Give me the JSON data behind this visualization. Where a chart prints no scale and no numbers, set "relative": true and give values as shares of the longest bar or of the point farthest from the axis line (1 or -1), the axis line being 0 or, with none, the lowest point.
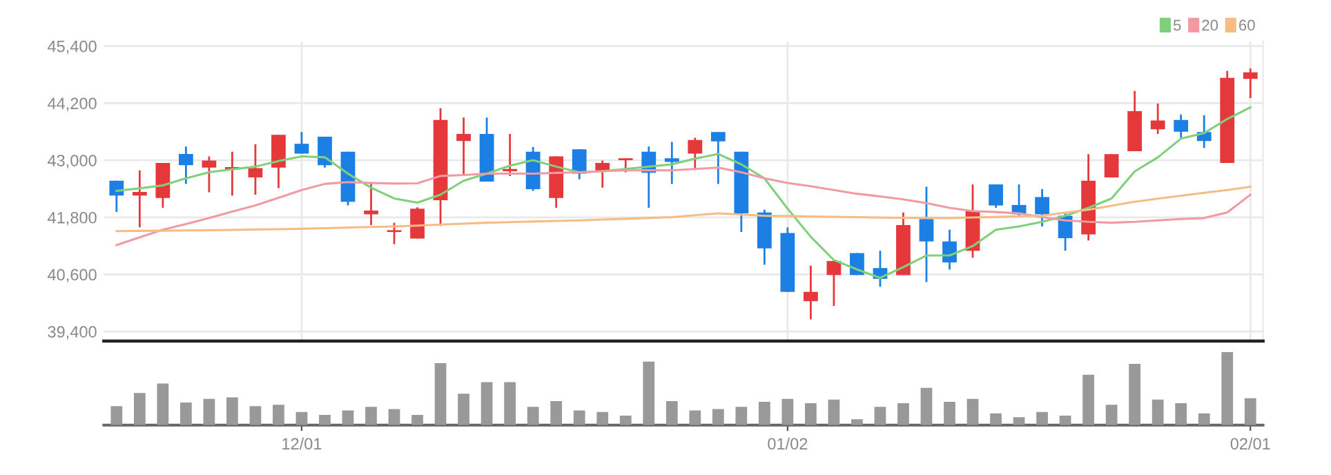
{
  "chart_data": [
    {
      "type": "candlestick",
      "categories": [
        null,
        null,
        null,
        null,
        null,
        null,
        null,
        null,
        null,
        null,
        null,
        null,
        null,
        null,
        null,
        null,
        null,
        null,
        null,
        null,
        null,
        null,
        null,
        null,
        null,
        null,
        null,
        null,
        null,
        null,
        null,
        null,
        null,
        null,
        null,
        null,
        null,
        null,
        null,
        null,
        null,
        null,
        null,
        null,
        null,
        null,
        null,
        null,
        null,
        null
      ],
      "ohlc": [
        [
          42571,
          42571,
          41913,
          42257
        ],
        [
          42257,
          42787,
          41589,
          42336
        ],
        [
          42208,
          42944,
          42002,
          42944
        ],
        [
          43131,
          43288,
          42503,
          42895
        ],
        [
          42846,
          43082,
          42326,
          42993
        ],
        [
          42807,
          43180,
          42257,
          42856
        ],
        [
          42640,
          43337,
          42277,
          42836
        ],
        [
          42846,
          43534,
          42414,
          43534
        ],
        [
          43347,
          43593,
          43141,
          43141
        ],
        [
          43494,
          43494,
          42846,
          42895
        ],
        [
          43180,
          43180,
          42051,
          42129
        ],
        [
          41864,
          42522,
          41638,
          41943
        ],
        [
          41491,
          41687,
          41236,
          41530
        ],
        [
          41354,
          42012,
          41354,
          41982
        ],
        [
          42159,
          44093,
          41619,
          43848
        ],
        [
          43406,
          43897,
          42699,
          43553
        ],
        [
          43553,
          43897,
          42552,
          42552
        ],
        [
          42768,
          43553,
          42669,
          42817
        ],
        [
          43180,
          43278,
          42355,
          42394
        ],
        [
          42208,
          43082,
          42002,
          43082
        ],
        [
          43229,
          43229,
          42601,
          42719
        ],
        [
          42768,
          42993,
          42424,
          42944
        ],
        [
          43003,
          43043,
          42748,
          43043
        ],
        [
          43180,
          43288,
          42002,
          42738
        ],
        [
          43043,
          43386,
          42503,
          42964
        ],
        [
          43141,
          43475,
          42797,
          43426
        ],
        [
          43593,
          43593,
          42503,
          43396
        ],
        [
          43180,
          43180,
          41491,
          41884
        ],
        [
          41903,
          41962,
          40804,
          41147
        ],
        [
          41471,
          41589,
          40234,
          40234
        ],
        [
          40038,
          40784,
          39655,
          40234
        ],
        [
          40588,
          40882,
          39940,
          40882
        ],
        [
          41049,
          41049,
          40588,
          40588
        ],
        [
          40734,
          41098,
          40342,
          40508
        ],
        [
          40587,
          41903,
          40587,
          41638
        ],
        [
          41765,
          42443,
          40440,
          41294
        ],
        [
          41294,
          41540,
          40705,
          40852
        ],
        [
          41098,
          42492,
          40951,
          41932
        ],
        [
          42492,
          42492,
          42001,
          42050
        ],
        [
          42060,
          42492,
          41815,
          41864
        ],
        [
          42227,
          42394,
          41608,
          41864
        ],
        [
          41834,
          41883,
          41098,
          41363
        ],
        [
          41441,
          43130,
          41314,
          42571
        ],
        [
          42639,
          43130,
          42639,
          43130
        ],
        [
          43189,
          44456,
          43189,
          44034
        ],
        [
          43651,
          44191,
          43553,
          43837
        ],
        [
          43847,
          43965,
          43474,
          43602
        ],
        [
          43592,
          43945,
          43258,
          43405
        ],
        [
          42944,
          44878,
          42944,
          44731
        ],
        [
          44711,
          44927,
          44309,
          44849
        ]
      ],
      "colors": [
        "#1b7fe3",
        "#e5383b",
        "#e5383b",
        "#1b7fe3",
        "#e5383b",
        "#e5383b",
        "#e5383b",
        "#e5383b",
        "#1b7fe3",
        "#1b7fe3",
        "#1b7fe3",
        "#e5383b",
        "#e5383b",
        "#e5383b",
        "#e5383b",
        "#e5383b",
        "#1b7fe3",
        "#e5383b",
        "#1b7fe3",
        "#e5383b",
        "#1b7fe3",
        "#e5383b",
        "#e5383b",
        "#1b7fe3",
        "#1b7fe3",
        "#e5383b",
        "#1b7fe3",
        "#1b7fe3",
        "#1b7fe3",
        "#1b7fe3",
        "#e5383b",
        "#e5383b",
        "#1b7fe3",
        "#1b7fe3",
        "#e5383b",
        "#1b7fe3",
        "#1b7fe3",
        "#e5383b",
        "#1b7fe3",
        "#1b7fe3",
        "#1b7fe3",
        "#1b7fe3",
        "#e5383b",
        "#e5383b",
        "#e5383b",
        "#e5383b",
        "#1b7fe3",
        "#1b7fe3",
        "#e5383b",
        "#e5383b"
      ],
      "series": [
        {
          "type": "line",
          "name": "5",
          "color": "#7fd07a",
          "values": [
            42355,
            42410,
            42473,
            42620,
            42748,
            42810,
            42866,
            42984,
            43082,
            43062,
            42719,
            42424,
            42198,
            42110,
            42277,
            42571,
            42719,
            42886,
            43003,
            42866,
            42748,
            42768,
            42817,
            42866,
            42915,
            43033,
            43131,
            42915,
            42620,
            41982,
            41393,
            40902,
            40705,
            40528,
            40754,
            40999,
            40999,
            41196,
            41540,
            41608,
            41706,
            41834,
            42001,
            42197,
            42767,
            43062,
            43454,
            43572,
            43867,
            44112
          ]
        },
        {
          "type": "line",
          "name": "20",
          "color": "#f29aa3",
          "values": [
            41216,
            41380,
            41540,
            41660,
            41786,
            41920,
            42051,
            42210,
            42375,
            42503,
            42542,
            42522,
            42510,
            42515,
            42670,
            42689,
            42719,
            42720,
            42719,
            42735,
            42748,
            42770,
            42787,
            42790,
            42787,
            42817,
            42846,
            42748,
            42620,
            42522,
            42453,
            42375,
            42296,
            42240,
            42178,
            42099,
            42001,
            41932,
            41912,
            41883,
            41804,
            41736,
            41706,
            41687,
            41706,
            41736,
            41765,
            41785,
            41903,
            42276
          ]
        },
        {
          "type": "line",
          "name": "60",
          "color": "#f7bc84",
          "values": [
            41511,
            41516,
            41520,
            41525,
            41530,
            41537,
            41545,
            41552,
            41560,
            41572,
            41585,
            41597,
            41609,
            41628,
            41648,
            41668,
            41687,
            41700,
            41712,
            41724,
            41736,
            41753,
            41770,
            41788,
            41805,
            41845,
            41884,
            41860,
            41835,
            41828,
            41820,
            41812,
            41805,
            41795,
            41790,
            41788,
            41785,
            41797,
            41810,
            41822,
            41834,
            41898,
            41962,
            42045,
            42129,
            42192,
            42256,
            42315,
            42374,
            42443
          ]
        }
      ],
      "ylim": [
        39200,
        45500
      ],
      "yticks": [
        {
          "value": 39400,
          "label": "39,400"
        },
        {
          "value": 40600,
          "label": "40,600"
        },
        {
          "value": 41800,
          "label": "41,800"
        },
        {
          "value": 43000,
          "label": "43,000"
        },
        {
          "value": 44200,
          "label": "44,200"
        },
        {
          "value": 45400,
          "label": "45,400"
        }
      ],
      "grid": true,
      "legend": "top right",
      "tick_labels": "y"
    },
    {
      "type": "bar",
      "categories": [
        null,
        null,
        null,
        null,
        null,
        null,
        null,
        null,
        "12/01",
        null,
        null,
        null,
        null,
        null,
        null,
        null,
        null,
        null,
        null,
        null,
        null,
        null,
        null,
        null,
        null,
        null,
        null,
        null,
        null,
        "01/02",
        null,
        null,
        null,
        null,
        null,
        null,
        null,
        null,
        null,
        null,
        null,
        null,
        null,
        null,
        null,
        null,
        null,
        null,
        null,
        "02/01"
      ],
      "values": [
        0.26,
        0.44,
        0.57,
        0.31,
        0.36,
        0.38,
        0.26,
        0.28,
        0.18,
        0.14,
        0.2,
        0.25,
        0.22,
        0.14,
        0.85,
        0.43,
        0.59,
        0.59,
        0.25,
        0.33,
        0.2,
        0.18,
        0.13,
        0.87,
        0.33,
        0.2,
        0.22,
        0.25,
        0.32,
        0.36,
        0.3,
        0.35,
        0.08,
        0.25,
        0.3,
        0.51,
        0.32,
        0.36,
        0.16,
        0.11,
        0.18,
        0.13,
        0.69,
        0.28,
        0.84,
        0.35,
        0.3,
        0.16,
        1,
        0.37
      ],
      "color": "#999999",
      "relative": true,
      "tick_labels": "x"
    }
  ]
}
